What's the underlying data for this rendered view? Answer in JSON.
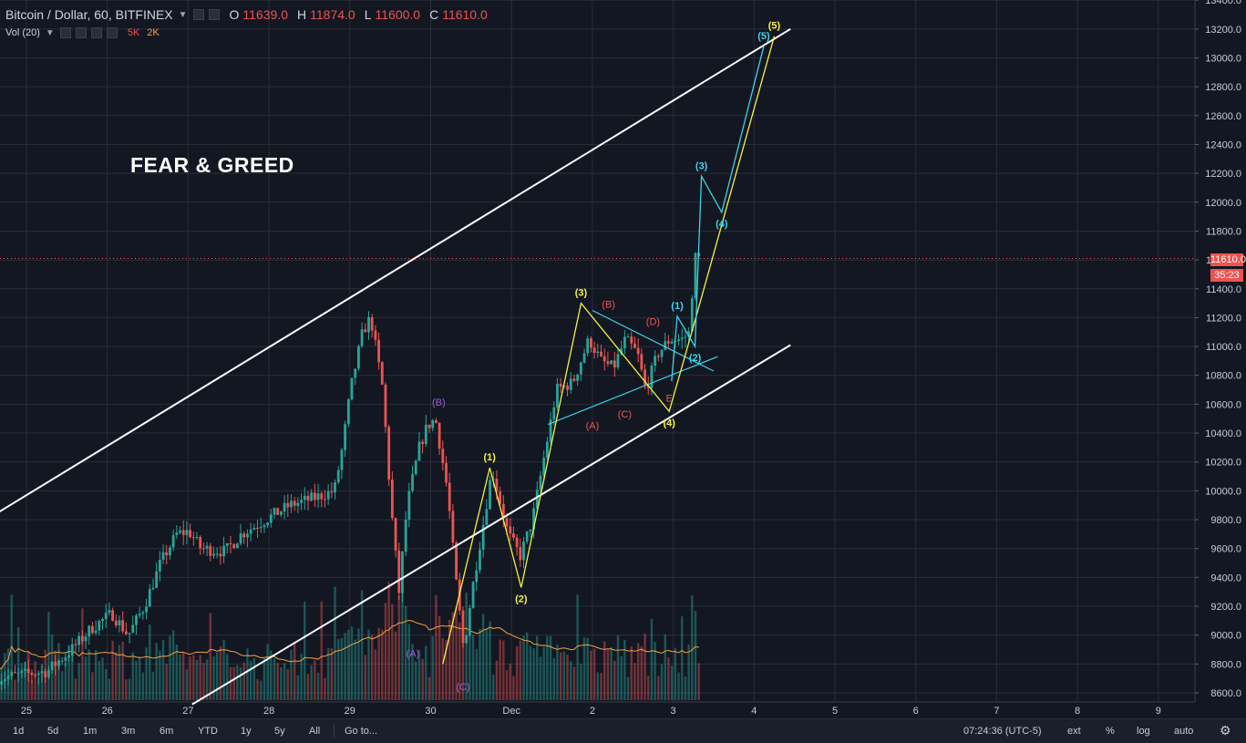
{
  "header": {
    "symbol": "Bitcoin / Dollar, 60, BITFINEX",
    "ohlc": [
      {
        "label": "O",
        "value": "11639.0"
      },
      {
        "label": "H",
        "value": "11874.0"
      },
      {
        "label": "L",
        "value": "11600.0"
      },
      {
        "label": "C",
        "value": "11610.0"
      }
    ],
    "volume_label": "Vol (20)",
    "volume_values": [
      "5K",
      "2K"
    ]
  },
  "overlay_title": "FEAR & GREED",
  "price_tag": {
    "value": "11610.0",
    "countdown": "35:23"
  },
  "bottom_bar": {
    "timeframes": [
      "1d",
      "5d",
      "1m",
      "3m",
      "6m",
      "YTD",
      "1y",
      "5y",
      "All"
    ],
    "goto": "Go to...",
    "time": "07:24:36 (UTC-5)",
    "options": [
      "ext",
      "%",
      "log",
      "auto"
    ],
    "settings_icon": "gear-icon"
  },
  "colors": {
    "background": "#131722",
    "grid": "#2a2e39",
    "up": "#26a69a",
    "down": "#ef5350",
    "channel": "#ffffff",
    "yellow_wave": "#f5f243",
    "cyan_wave": "#3fd3e8",
    "red_label": "#ef5350",
    "purple_label": "#9c5fd6",
    "volume_ma": "#f7a041"
  },
  "chart_data": {
    "type": "candlestick",
    "x_ticks": [
      "25",
      "26",
      "27",
      "28",
      "29",
      "30",
      "Dec",
      "2",
      "3",
      "4",
      "5",
      "6",
      "7",
      "8",
      "9"
    ],
    "y_ticks": [
      "8600.0",
      "8800.0",
      "9000.0",
      "9200.0",
      "9400.0",
      "9600.0",
      "9800.0",
      "10000.0",
      "10200.0",
      "10400.0",
      "10600.0",
      "10800.0",
      "11000.0",
      "11200.0",
      "11400.0",
      "11600.0",
      "11800.0",
      "12000.0",
      "12200.0",
      "12400.0",
      "12600.0",
      "12800.0",
      "13000.0",
      "13200.0",
      "13400.0"
    ],
    "ylim": [
      8530,
      13420
    ],
    "xlim_days": [
      24.65,
      34.45
    ],
    "price_path": [
      [
        24.65,
        8700
      ],
      [
        25.3,
        8750
      ],
      [
        25.6,
        8900
      ],
      [
        25.85,
        9050
      ],
      [
        26.1,
        9150
      ],
      [
        26.3,
        9000
      ],
      [
        26.5,
        9200
      ],
      [
        26.7,
        9500
      ],
      [
        26.9,
        9700
      ],
      [
        27.05,
        9720
      ],
      [
        27.2,
        9600
      ],
      [
        27.5,
        9580
      ],
      [
        27.7,
        9700
      ],
      [
        28.0,
        9800
      ],
      [
        28.3,
        9900
      ],
      [
        28.6,
        9950
      ],
      [
        28.85,
        10000
      ],
      [
        28.95,
        10300
      ],
      [
        29.05,
        10700
      ],
      [
        29.2,
        11100
      ],
      [
        29.3,
        11200
      ],
      [
        29.45,
        10700
      ],
      [
        29.55,
        9900
      ],
      [
        29.65,
        9300
      ],
      [
        29.75,
        9900
      ],
      [
        29.9,
        10300
      ],
      [
        30.0,
        10450
      ],
      [
        30.1,
        10500
      ],
      [
        30.25,
        10000
      ],
      [
        30.35,
        9400
      ],
      [
        30.45,
        8900
      ],
      [
        30.55,
        9300
      ],
      [
        30.7,
        9800
      ],
      [
        30.8,
        10150
      ],
      [
        31.0,
        9700
      ],
      [
        31.15,
        9550
      ],
      [
        31.3,
        9800
      ],
      [
        31.5,
        10400
      ],
      [
        31.6,
        10700
      ],
      [
        31.8,
        10750
      ],
      [
        32.0,
        11050
      ],
      [
        32.15,
        10900
      ],
      [
        32.3,
        10850
      ],
      [
        32.45,
        11050
      ],
      [
        32.6,
        10950
      ],
      [
        32.7,
        10700
      ],
      [
        32.85,
        10950
      ],
      [
        33.0,
        11050
      ],
      [
        33.15,
        11050
      ],
      [
        33.25,
        11100
      ],
      [
        33.3,
        11650
      ],
      [
        33.32,
        11610
      ]
    ],
    "channel": [
      {
        "name": "upper",
        "points": [
          [
            24.65,
            9850
          ],
          [
            34.45,
            13200
          ]
        ]
      },
      {
        "name": "lower",
        "points": [
          [
            27.05,
            8520
          ],
          [
            34.45,
            11010
          ]
        ]
      }
    ],
    "wave_yellow": {
      "points": [
        [
          30.15,
          8800
        ],
        [
          30.73,
          10160
        ],
        [
          31.12,
          9330
        ],
        [
          31.86,
          11300
        ],
        [
          32.95,
          10550
        ],
        [
          33.24,
          11120
        ],
        [
          34.25,
          13150
        ]
      ],
      "labels": [
        {
          "text": "(1)",
          "x": 30.73,
          "y": 10160,
          "pos": "above"
        },
        {
          "text": "(2)",
          "x": 31.12,
          "y": 9330,
          "pos": "below"
        },
        {
          "text": "(3)",
          "x": 31.86,
          "y": 11300,
          "pos": "above"
        },
        {
          "text": "(4)",
          "x": 32.95,
          "y": 10550,
          "pos": "below"
        },
        {
          "text": "(5)",
          "x": 34.25,
          "y": 13150,
          "pos": "above"
        }
      ]
    },
    "wave_cyan": {
      "points": [
        [
          32.98,
          10760
        ],
        [
          33.05,
          11210
        ],
        [
          33.27,
          11000
        ],
        [
          33.35,
          12180
        ],
        [
          33.6,
          11930
        ],
        [
          34.12,
          13080
        ]
      ],
      "labels": [
        {
          "text": "(1)",
          "x": 33.05,
          "y": 11210,
          "pos": "above"
        },
        {
          "text": "(2)",
          "x": 33.27,
          "y": 11000,
          "pos": "below"
        },
        {
          "text": "(3)",
          "x": 33.35,
          "y": 12180,
          "pos": "above"
        },
        {
          "text": "(4)",
          "x": 33.6,
          "y": 11930,
          "pos": "below"
        },
        {
          "text": "(5)",
          "x": 34.12,
          "y": 13080,
          "pos": "above"
        }
      ]
    },
    "triangle_lines": [
      [
        [
          31.45,
          10460
        ],
        [
          33.55,
          10930
        ]
      ],
      [
        [
          32.0,
          11250
        ],
        [
          33.5,
          10830
        ]
      ]
    ],
    "red_labels": [
      {
        "text": "(A)",
        "x": 32.0,
        "y": 10530,
        "pos": "below"
      },
      {
        "text": "(B)",
        "x": 32.2,
        "y": 11220,
        "pos": "above"
      },
      {
        "text": "(C)",
        "x": 32.4,
        "y": 10610,
        "pos": "below"
      },
      {
        "text": "(D)",
        "x": 32.75,
        "y": 11100,
        "pos": "above"
      },
      {
        "text": "E",
        "x": 32.95,
        "y": 10720,
        "pos": "below"
      }
    ],
    "purple_labels": [
      {
        "text": "(A)",
        "x": 29.78,
        "y": 8950,
        "pos": "below"
      },
      {
        "text": "(B)",
        "x": 30.1,
        "y": 10540,
        "pos": "above"
      },
      {
        "text": "(C)",
        "x": 30.4,
        "y": 8720,
        "pos": "below"
      }
    ]
  }
}
